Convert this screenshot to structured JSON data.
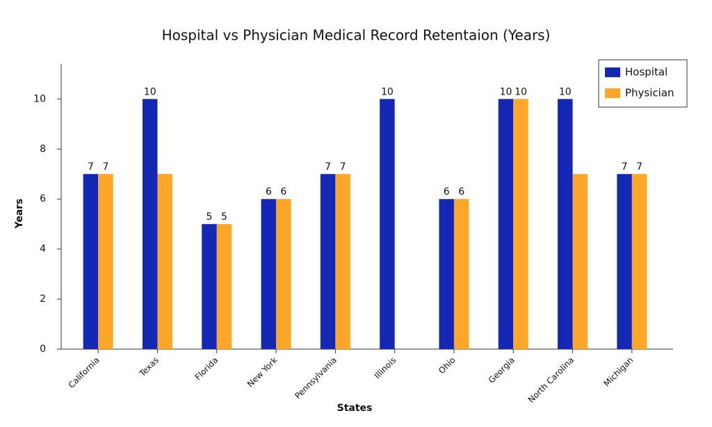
{
  "chart_data": {
    "type": "bar",
    "title": "Hospital vs Physician Medical Record Retentaion (Years)",
    "x_label": "States",
    "y_label": "Years",
    "categories": [
      "California",
      "Texas",
      "Florida",
      "New York",
      "Pennsylvania",
      "Illinois",
      "Ohio",
      "Georgia",
      "North Carolina",
      "Michigan"
    ],
    "series": [
      {
        "name": "Hospital",
        "color": "#1428b4",
        "values": [
          7,
          10,
          5,
          6,
          7,
          10,
          6,
          10,
          10,
          7
        ],
        "show_labels": [
          true,
          true,
          true,
          true,
          true,
          true,
          true,
          true,
          true,
          true
        ]
      },
      {
        "name": "Physician",
        "color": "#fca72a",
        "values": [
          7,
          7,
          5,
          6,
          7,
          null,
          6,
          10,
          7,
          7
        ],
        "show_labels": [
          true,
          false,
          true,
          true,
          true,
          false,
          true,
          true,
          false,
          true
        ]
      }
    ],
    "ylim": [
      0,
      11.4
    ],
    "yticks": [
      0,
      2,
      4,
      6,
      8,
      10
    ],
    "grid": false,
    "legend": "upper right"
  }
}
